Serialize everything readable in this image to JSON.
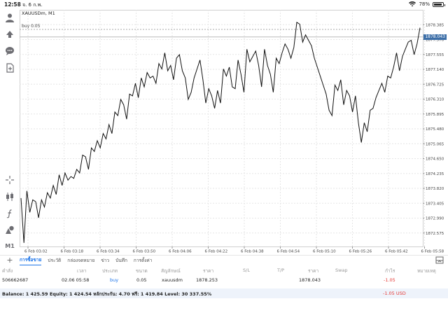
{
  "status": {
    "time": "12:58",
    "date": "จ. 6 ก.พ.",
    "battery": "78%",
    "battery_level": 0.78
  },
  "chart": {
    "symbol": "XAUUSDm, M1",
    "buy_label": "buy 0.05",
    "current_price": "1878.043",
    "y_ticks": [
      "1878.385",
      "1877.970",
      "1877.555",
      "1877.140",
      "1876.725",
      "1876.310",
      "1875.895",
      "1875.480",
      "1875.065",
      "1874.650",
      "1874.235",
      "1873.820",
      "1873.405",
      "1872.990",
      "1872.575"
    ],
    "x_ticks": [
      "6 Feb 03:02",
      "6 Feb 03:18",
      "6 Feb 03:34",
      "6 Feb 03:50",
      "6 Feb 04:06",
      "6 Feb 04:22",
      "6 Feb 04:38",
      "6 Feb 04:54",
      "6 Feb 05:10",
      "6 Feb 05:26",
      "6 Feb 05:42",
      "6 Feb 05:58"
    ]
  },
  "chart_data": {
    "type": "line",
    "title": "XAUUSDm, M1",
    "ylim": [
      1872.2,
      1878.8
    ],
    "annotations": [
      {
        "label": "buy 0.05",
        "y": 1878.253
      },
      {
        "label": "1878.043",
        "y": 1878.043
      }
    ],
    "series": [
      {
        "values": [
          1873.55,
          1872.3,
          1873.75,
          1873.15,
          1873.5,
          1873.45,
          1873.0,
          1873.5,
          1873.3,
          1873.7,
          1873.55,
          1873.9,
          1873.65,
          1874.2,
          1873.9,
          1874.25,
          1874.05,
          1874.15,
          1874.1,
          1874.35,
          1874.25,
          1874.75,
          1874.7,
          1874.35,
          1874.95,
          1874.85,
          1875.15,
          1874.95,
          1875.35,
          1875.2,
          1875.6,
          1875.35,
          1875.95,
          1875.85,
          1876.3,
          1876.15,
          1875.75,
          1876.45,
          1876.4,
          1876.75,
          1876.35,
          1876.9,
          1876.65,
          1877.05,
          1876.9,
          1876.95,
          1876.75,
          1877.3,
          1877.15,
          1877.6,
          1877.1,
          1877.25,
          1876.85,
          1877.45,
          1877.55,
          1877.1,
          1876.9,
          1876.3,
          1876.5,
          1876.9,
          1877.15,
          1877.4,
          1876.85,
          1876.2,
          1876.6,
          1876.4,
          1876.05,
          1876.55,
          1876.2,
          1877.15,
          1876.95,
          1877.2,
          1876.65,
          1876.6,
          1877.4,
          1877.0,
          1876.5,
          1877.7,
          1877.35,
          1877.5,
          1877.65,
          1877.25,
          1876.65,
          1877.7,
          1877.25,
          1877.0,
          1876.5,
          1877.45,
          1877.3,
          1877.6,
          1877.85,
          1877.7,
          1877.45,
          1877.75,
          1878.45,
          1878.4,
          1877.9,
          1878.1,
          1877.95,
          1877.8,
          1877.45,
          1877.2,
          1876.95,
          1876.7,
          1876.45,
          1876.0,
          1875.85,
          1876.7,
          1876.55,
          1876.85,
          1876.15,
          1876.55,
          1876.4,
          1875.95,
          1876.4,
          1875.65,
          1875.1,
          1875.65,
          1875.4,
          1876.0,
          1876.05,
          1876.35,
          1876.55,
          1876.75,
          1876.5,
          1876.95,
          1876.9,
          1877.2,
          1877.6,
          1877.1,
          1877.5,
          1877.7,
          1877.9,
          1877.95,
          1877.55,
          1877.85,
          1878.3
        ]
      }
    ]
  },
  "tabs": [
    "การซื้อขาย",
    "ประวัติ",
    "กล่องจดหมาย",
    "ข่าว",
    "บันทึก",
    "การตั้งค่า"
  ],
  "table": {
    "headers": [
      "คำสั่ง",
      "เวลา",
      "ประเภท",
      "ขนาด",
      "สัญลักษณ์",
      "ราคา",
      "S/L",
      "T/P",
      "ราคา",
      "Swap",
      "กำไร",
      "หมายเหตุ"
    ],
    "row": {
      "order": "506662687",
      "time": "02.06 05:58",
      "type": "buy",
      "size": "0.05",
      "symbol": "xauusdm",
      "price": "1878.253",
      "current": "1878.043",
      "profit": "-1.05"
    }
  },
  "balance": {
    "text": "Balance: 1 425.59 Equity: 1 424.54 หลักประกัน: 4.70 ฟรี: 1 419.84 Level: 30 337.55%",
    "value": "-1.05  USD"
  },
  "colors": {
    "accent": "#1a73e8",
    "loss": "#e53935",
    "price_tag": "#3d6fa8"
  }
}
